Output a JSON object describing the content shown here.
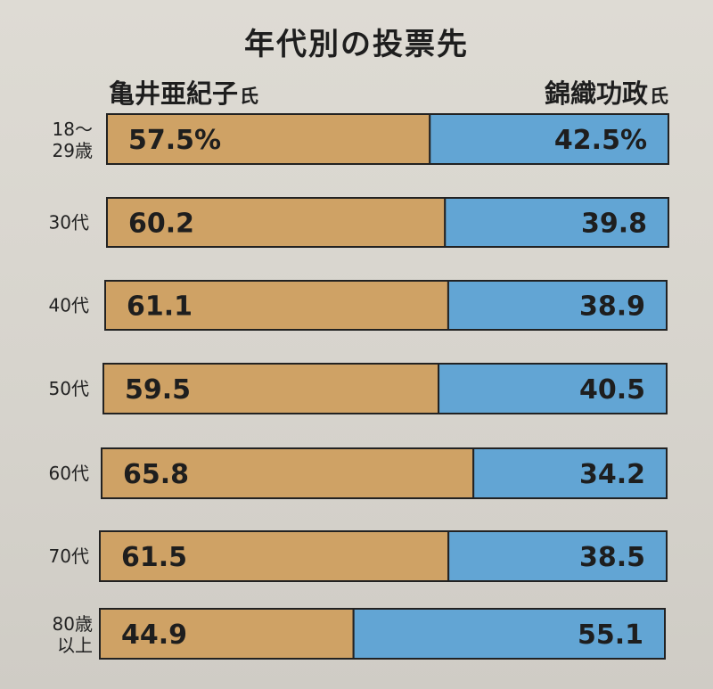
{
  "title": "年代別の投票先",
  "candidates": {
    "left": {
      "name": "亀井亜紀子",
      "suffix": "氏",
      "color": "#cfa265"
    },
    "right": {
      "name": "錦織功政",
      "suffix": "氏",
      "color": "#62a5d4"
    }
  },
  "chart_data": {
    "type": "bar",
    "stacked": true,
    "orientation": "horizontal",
    "title": "年代別の投票先",
    "categories": [
      [
        "18～",
        "29歳"
      ],
      [
        "30代"
      ],
      [
        "40代"
      ],
      [
        "50代"
      ],
      [
        "60代"
      ],
      [
        "70代"
      ],
      [
        "80歳",
        "以上"
      ]
    ],
    "series": [
      {
        "name": "亀井亜紀子氏",
        "values": [
          57.5,
          60.2,
          61.1,
          59.5,
          65.8,
          61.5,
          44.9
        ]
      },
      {
        "name": "錦織功政氏",
        "values": [
          42.5,
          39.8,
          38.9,
          40.5,
          34.2,
          38.5,
          55.1
        ]
      }
    ],
    "value_labels": [
      [
        "57.5%",
        "60.2",
        "61.1",
        "59.5",
        "65.8",
        "61.5",
        "44.9"
      ],
      [
        "42.5%",
        "39.8",
        "38.9",
        "40.5",
        "34.2",
        "38.5",
        "55.1"
      ]
    ],
    "xlim": [
      0,
      100
    ]
  }
}
